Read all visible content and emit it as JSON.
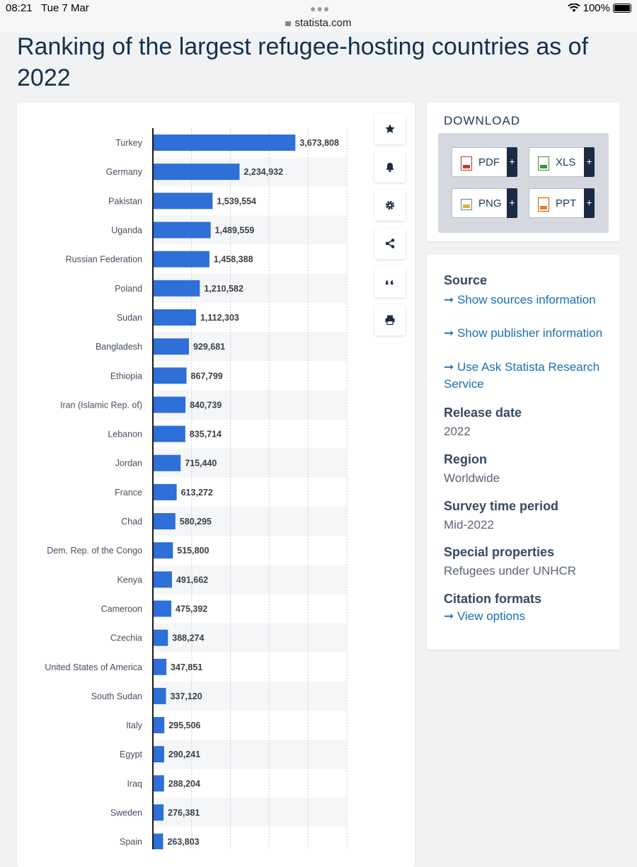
{
  "status": {
    "time": "08:21",
    "date": "Tue 7 Mar",
    "battery": "100%",
    "url": "statista.com"
  },
  "page": {
    "title": "Ranking of the largest refugee-hosting countries as of 2022"
  },
  "download": {
    "title": "DOWNLOAD",
    "pdf": "PDF",
    "xls": "XLS",
    "png": "PNG",
    "ppt": "PPT",
    "plus": "+"
  },
  "info": {
    "source_heading": "Source",
    "source_link1": "Show sources information",
    "source_link2": "Show publisher information",
    "source_link3": "Use Ask Statista Research Service",
    "release_heading": "Release date",
    "release_value": "2022",
    "region_heading": "Region",
    "region_value": "Worldwide",
    "survey_heading": "Survey time period",
    "survey_value": "Mid-2022",
    "special_heading": "Special properties",
    "special_value": "Refugees under UNHCR",
    "citation_heading": "Citation formats",
    "citation_link": "View options"
  },
  "colors": {
    "bar": "#2e6fd8",
    "accent": "#1a6fb3"
  },
  "chart_data": {
    "type": "bar",
    "orientation": "horizontal",
    "title": "Ranking of the largest refugee-hosting countries as of 2022",
    "xlim": [
      0,
      5000000
    ],
    "categories": [
      "Turkey",
      "Germany",
      "Pakistan",
      "Uganda",
      "Russian Federation",
      "Poland",
      "Sudan",
      "Bangladesh",
      "Ethiopia",
      "Iran (Islamic Rep. of)",
      "Lebanon",
      "Jordan",
      "France",
      "Chad",
      "Dem. Rep. of the Congo",
      "Kenya",
      "Cameroon",
      "Czechia",
      "United States of America",
      "South Sudan",
      "Italy",
      "Egypt",
      "Iraq",
      "Sweden",
      "Spain"
    ],
    "values": [
      3673808,
      2234932,
      1539554,
      1489559,
      1458388,
      1210582,
      1112303,
      929681,
      867799,
      840739,
      835714,
      715440,
      613272,
      580295,
      515800,
      491662,
      475392,
      388274,
      347851,
      337120,
      295506,
      290241,
      288204,
      276381,
      263803
    ],
    "labels": [
      "3,673,808",
      "2,234,932",
      "1,539,554",
      "1,489,559",
      "1,458,388",
      "1,210,582",
      "1,112,303",
      "929,681",
      "867,799",
      "840,739",
      "835,714",
      "715,440",
      "613,272",
      "580,295",
      "515,800",
      "491,662",
      "475,392",
      "388,274",
      "347,851",
      "337,120",
      "295,506",
      "290,241",
      "288,204",
      "276,381",
      "263,803"
    ]
  }
}
